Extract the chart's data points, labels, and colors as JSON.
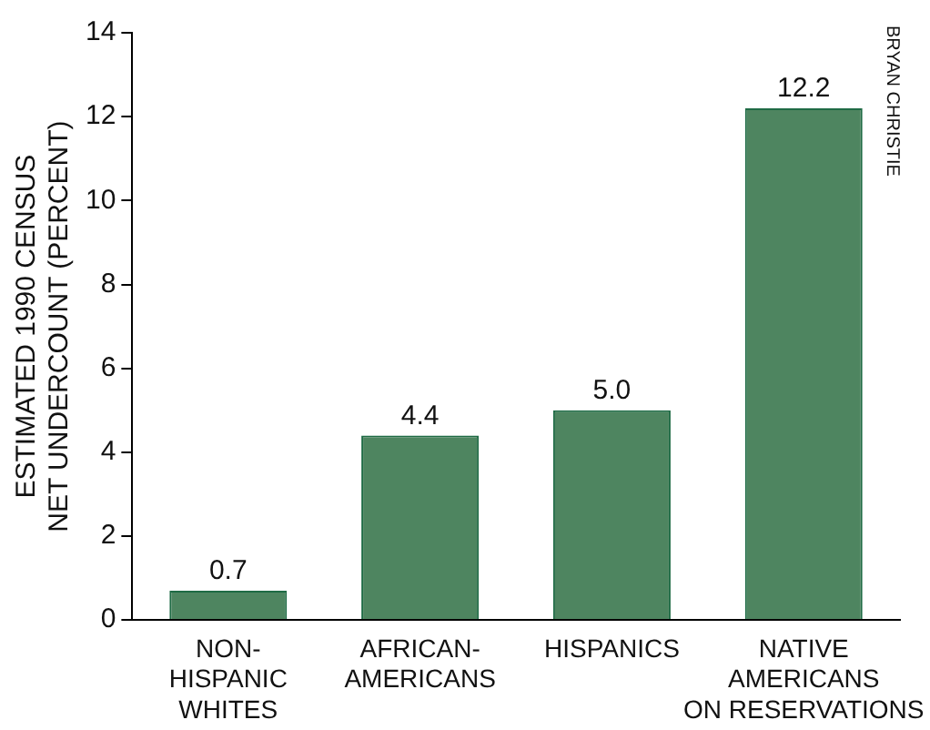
{
  "chart_data": {
    "type": "bar",
    "categories": [
      "NON-\nHISPANIC\nWHITES",
      "AFRICAN-\nAMERICANS",
      "HISPANICS",
      "NATIVE\nAMERICANS\nON RESERVATIONS"
    ],
    "values": [
      0.7,
      4.4,
      5.0,
      12.2
    ],
    "value_labels": [
      "0.7",
      "4.4",
      "5.0",
      "12.2"
    ],
    "color": "#4e8560",
    "ylabel": "ESTIMATED 1990 CENSUS\nNET UNDERCOUNT (PERCENT)",
    "ylim": [
      0,
      14
    ],
    "yticks": [
      0,
      2,
      4,
      6,
      8,
      10,
      12,
      14
    ],
    "grid": false,
    "legend": false,
    "annotations": [
      "BRYAN CHRISTIE"
    ]
  }
}
